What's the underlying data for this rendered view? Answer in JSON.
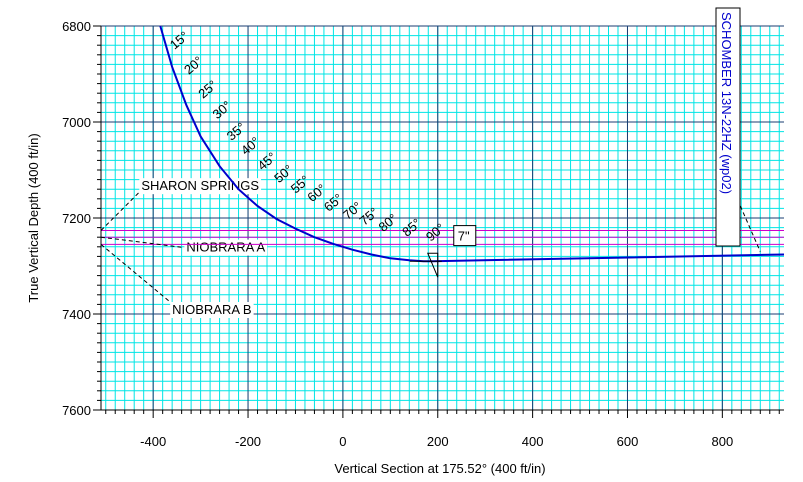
{
  "chart_data": {
    "type": "line",
    "xlabel": "Vertical Section at 175.52° (400 ft/in)",
    "ylabel": "True Vertical Depth (400 ft/in)",
    "xlim": [
      -510,
      930
    ],
    "ylim": [
      6800,
      7600
    ],
    "y_inverted": true,
    "grid": true,
    "x_ticks": [
      "-400",
      "-200",
      "0",
      "200",
      "400",
      "600",
      "800"
    ],
    "y_ticks": [
      "6800",
      "7000",
      "7200",
      "7400",
      "7600"
    ],
    "x_tick_values": [
      -400,
      -200,
      0,
      200,
      400,
      600,
      800
    ],
    "y_tick_values": [
      6800,
      7000,
      7200,
      7400,
      7600
    ],
    "series": [
      {
        "x": [
          -385,
          -360,
          -330,
          -300,
          -260,
          -220,
          -180,
          -140,
          -100,
          -60,
          -20,
          20,
          60,
          100,
          140,
          170,
          190,
          930
        ],
        "y": [
          6800,
          6885,
          6965,
          7030,
          7092,
          7140,
          7175,
          7202,
          7222,
          7240,
          7254,
          7266,
          7276,
          7284,
          7288,
          7290,
          7290,
          7276
        ]
      }
    ],
    "inclination_labels": [
      {
        "text": "15°",
        "x": -355,
        "y": 6850
      },
      {
        "text": "20°",
        "x": -325,
        "y": 6902
      },
      {
        "text": "25°",
        "x": -295,
        "y": 6952
      },
      {
        "text": "30°",
        "x": -265,
        "y": 6995
      },
      {
        "text": "35°",
        "x": -235,
        "y": 7040
      },
      {
        "text": "40°",
        "x": -205,
        "y": 7070
      },
      {
        "text": "45°",
        "x": -170,
        "y": 7102
      },
      {
        "text": "50°",
        "x": -135,
        "y": 7128
      },
      {
        "text": "55°",
        "x": -100,
        "y": 7150
      },
      {
        "text": "60°",
        "x": -65,
        "y": 7168
      },
      {
        "text": "65°",
        "x": -30,
        "y": 7188
      },
      {
        "text": "70°",
        "x": 10,
        "y": 7205
      },
      {
        "text": "75°",
        "x": 45,
        "y": 7217
      },
      {
        "text": "80°",
        "x": 85,
        "y": 7230
      },
      {
        "text": "85°",
        "x": 135,
        "y": 7240
      },
      {
        "text": "90°",
        "x": 185,
        "y": 7250
      }
    ],
    "formations": [
      {
        "name": "SHARON SPRINGS",
        "tvd": 7226,
        "label_x": -425,
        "label_y": 7142
      },
      {
        "name": "NIOBRARA A",
        "tvd": 7240,
        "label_x": -330,
        "label_y": 7270
      },
      {
        "name": "NIOBRARA B",
        "tvd": 7255,
        "label_x": -360,
        "label_y": 7400
      }
    ],
    "casing_label": "7\"",
    "well_label": "SCHOMBER 13N-22HZ (wp02)",
    "colors": {
      "grid": "#00e5e5",
      "major_grid": "#1a3c70",
      "well_path": "#0000cc",
      "formation_lines": "#cc00cc",
      "well_label": "#0000cc"
    }
  }
}
